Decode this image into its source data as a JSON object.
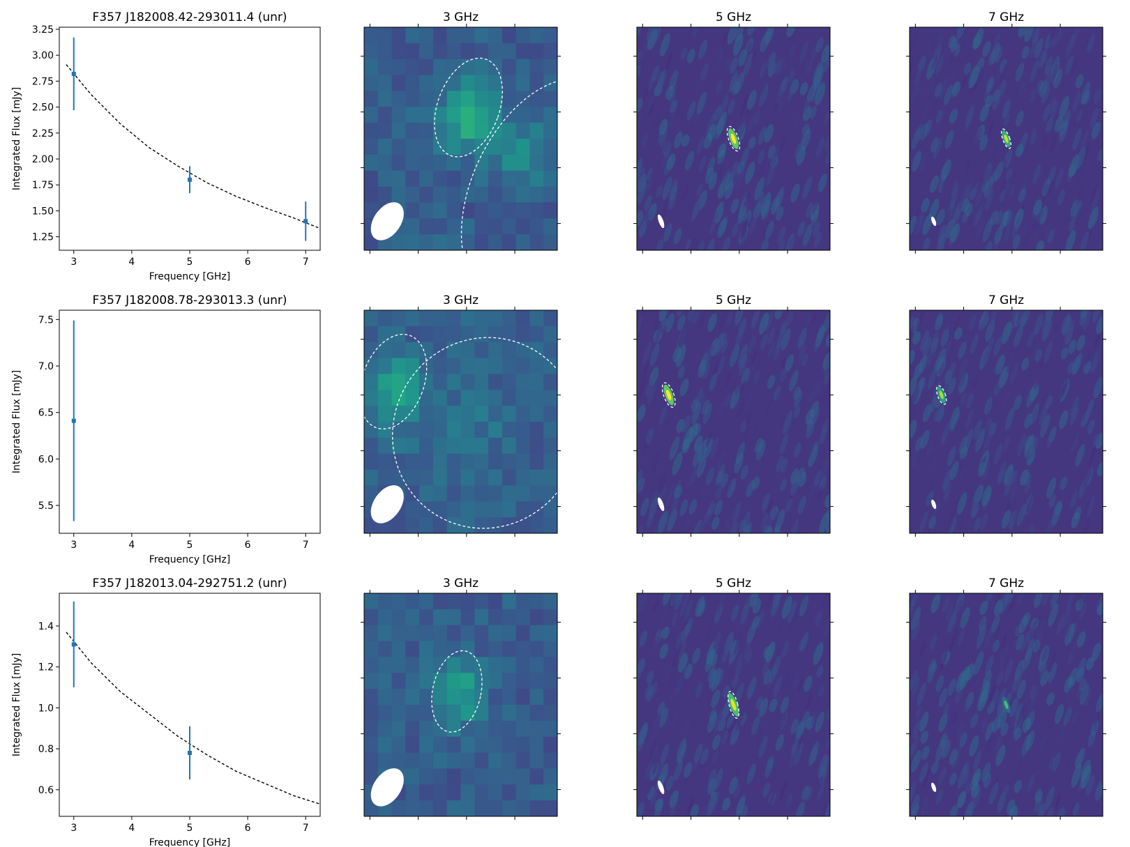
{
  "style": {
    "data_color": "#1f77b4",
    "fit_color": "#000000",
    "contour_color": "#ffffff",
    "image_colormap": "viridis"
  },
  "chart_data": [
    {
      "type": "scatter",
      "title": "F357 J182008.42-293011.4 (unr)",
      "xlabel": "Frequency [GHz]",
      "ylabel": "Integrated Flux [mJy]",
      "xlim": [
        2.75,
        7.25
      ],
      "ylim": [
        1.12,
        3.27
      ],
      "xticks": [
        "3",
        "4",
        "5",
        "6",
        "7"
      ],
      "yticks": [
        "1.25",
        "1.50",
        "1.75",
        "2.00",
        "2.25",
        "2.50",
        "2.75",
        "3.00",
        "3.25"
      ],
      "points": [
        {
          "x": 3,
          "y": 2.82,
          "yerr": 0.35
        },
        {
          "x": 5,
          "y": 1.8,
          "yerr": 0.13
        },
        {
          "x": 7,
          "y": 1.4,
          "yerr": 0.19
        }
      ],
      "fit": {
        "style": "dashed",
        "x": [
          2.87,
          3.3,
          3.8,
          4.3,
          4.8,
          5.3,
          5.8,
          6.3,
          6.8,
          7.25
        ],
        "y": [
          2.91,
          2.62,
          2.34,
          2.11,
          1.93,
          1.77,
          1.64,
          1.53,
          1.43,
          1.33
        ]
      },
      "images": [
        {
          "title": "3 GHz"
        },
        {
          "title": "5 GHz"
        },
        {
          "title": "7 GHz"
        }
      ]
    },
    {
      "type": "scatter",
      "title": "F357 J182008.78-293013.3 (unr)",
      "xlabel": "Frequency [GHz]",
      "ylabel": "Integrated Flux [mJy]",
      "xlim": [
        2.75,
        7.25
      ],
      "ylim": [
        5.2,
        7.6
      ],
      "xticks": [
        "3",
        "4",
        "5",
        "6",
        "7"
      ],
      "yticks": [
        "5.5",
        "6.0",
        "6.5",
        "7.0",
        "7.5"
      ],
      "points": [
        {
          "x": 3,
          "y": 6.41,
          "yerr": 1.08
        }
      ],
      "images": [
        {
          "title": "3 GHz"
        },
        {
          "title": "5 GHz"
        },
        {
          "title": "7 GHz"
        }
      ]
    },
    {
      "type": "scatter",
      "title": "F357 J182013.04-292751.2 (unr)",
      "xlabel": "Frequency [GHz]",
      "ylabel": "Integrated Flux [mJy]",
      "xlim": [
        2.75,
        7.25
      ],
      "ylim": [
        0.47,
        1.56
      ],
      "xticks": [
        "3",
        "4",
        "5",
        "6",
        "7"
      ],
      "yticks": [
        "0.6",
        "0.8",
        "1.0",
        "1.2",
        "1.4"
      ],
      "points": [
        {
          "x": 3,
          "y": 1.31,
          "yerr": 0.21
        },
        {
          "x": 5,
          "y": 0.78,
          "yerr": 0.13
        }
      ],
      "fit": {
        "style": "dashed",
        "x": [
          2.87,
          3.3,
          3.8,
          4.3,
          4.8,
          5.3,
          5.8,
          6.3,
          6.8,
          7.25
        ],
        "y": [
          1.37,
          1.22,
          1.08,
          0.97,
          0.86,
          0.77,
          0.69,
          0.63,
          0.57,
          0.53
        ]
      },
      "images": [
        {
          "title": "3 GHz"
        },
        {
          "title": "5 GHz"
        },
        {
          "title": "7 GHz"
        }
      ]
    }
  ]
}
